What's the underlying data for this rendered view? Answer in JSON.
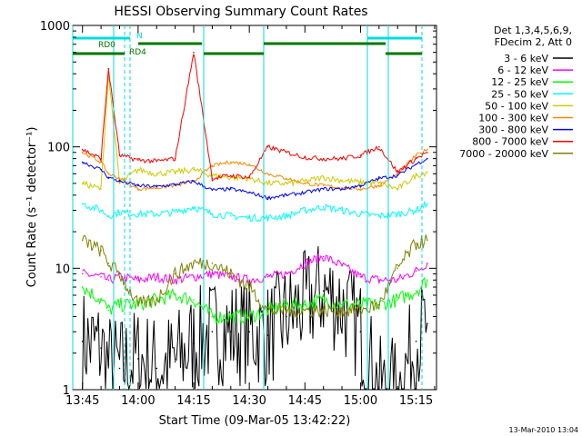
{
  "chart_data": {
    "type": "line",
    "title": "HESSI Observing Summary Count Rates",
    "xlabel": "Start Time (09-Mar-05 13:42:22)",
    "ylabel": "Count Rate (s⁻¹ detector⁻¹)",
    "y_scale": "log",
    "ylim": [
      1,
      1000
    ],
    "xlim": [
      "13:42:22",
      "15:20:30"
    ],
    "x_ticks": [
      "13:45",
      "14:00",
      "14:15",
      "14:30",
      "14:45",
      "15:00",
      "15:15"
    ],
    "y_ticks": [
      "1",
      "10",
      "100",
      "1000"
    ],
    "footer_date": "13-Mar-2010 13:04",
    "legend": {
      "header": [
        "Det 1,3,4,5,6,9,",
        "FDecim 2, Att 0"
      ],
      "placement": "right"
    },
    "flags": [
      {
        "label": "RD0",
        "color": "#007700"
      },
      {
        "label": "RD4",
        "color": "#007700"
      },
      {
        "label": "N",
        "color": "#00dddd"
      }
    ],
    "series": [
      {
        "name": "3 - 6 keV",
        "color": "#000000",
        "x": [
          "13:45",
          "13:50",
          "13:52",
          "13:55",
          "14:00",
          "14:05",
          "14:10",
          "14:15",
          "14:20",
          "14:25",
          "14:30",
          "14:35",
          "14:40",
          "14:45",
          "14:50",
          "14:55",
          "15:00",
          "15:05",
          "15:10",
          "15:15",
          "15:18"
        ],
        "y": [
          2.5,
          2.2,
          1.6,
          1.5,
          1.8,
          1.5,
          1.7,
          2.4,
          3.0,
          3.0,
          3.0,
          2.8,
          4.0,
          5.0,
          6.5,
          5.0,
          3.0,
          1.0,
          1.0,
          2.5,
          3.5
        ]
      },
      {
        "name": "6 - 12 keV",
        "color": "#ff00ff",
        "x": [
          "13:45",
          "13:50",
          "13:52",
          "13:55",
          "14:00",
          "14:05",
          "14:10",
          "14:15",
          "14:20",
          "14:25",
          "14:30",
          "14:35",
          "14:40",
          "14:45",
          "14:50",
          "14:55",
          "15:00",
          "15:05",
          "15:10",
          "15:15",
          "15:18"
        ],
        "y": [
          9.0,
          8.5,
          8.0,
          8.5,
          8.0,
          8.5,
          8.0,
          8.5,
          9.0,
          8.5,
          8.0,
          8.5,
          9.0,
          11.0,
          12.5,
          10.5,
          8.5,
          8.0,
          8.0,
          9.5,
          11.0
        ]
      },
      {
        "name": "12 - 25 keV",
        "color": "#00ff00",
        "x": [
          "13:45",
          "13:50",
          "13:52",
          "13:55",
          "14:00",
          "14:05",
          "14:10",
          "14:15",
          "14:20",
          "14:25",
          "14:30",
          "14:35",
          "14:40",
          "14:45",
          "14:50",
          "14:55",
          "15:00",
          "15:05",
          "15:10",
          "15:15",
          "15:18"
        ],
        "y": [
          7.0,
          5.5,
          4.5,
          5.0,
          5.0,
          5.5,
          6.0,
          5.5,
          4.0,
          4.0,
          4.0,
          4.5,
          5.0,
          5.0,
          5.5,
          5.0,
          5.0,
          5.0,
          5.5,
          6.5,
          8.0
        ]
      },
      {
        "name": "25 - 50 keV",
        "color": "#00ffff",
        "x": [
          "13:45",
          "13:50",
          "13:52",
          "13:55",
          "14:00",
          "14:05",
          "14:10",
          "14:15",
          "14:20",
          "14:25",
          "14:30",
          "14:35",
          "14:40",
          "14:45",
          "14:50",
          "14:55",
          "15:00",
          "15:05",
          "15:10",
          "15:15",
          "15:18"
        ],
        "y": [
          34,
          30,
          27,
          29,
          28,
          28,
          29,
          32,
          28,
          27,
          26,
          26,
          27,
          30,
          32,
          30,
          28,
          27,
          28,
          30,
          34
        ]
      },
      {
        "name": "50 - 100 keV",
        "color": "#cccc00",
        "x": [
          "13:45",
          "13:50",
          "13:52",
          "13:55",
          "14:00",
          "14:05",
          "14:10",
          "14:15",
          "14:20",
          "14:25",
          "14:30",
          "14:35",
          "14:40",
          "14:45",
          "14:50",
          "14:55",
          "15:00",
          "15:05",
          "15:10",
          "15:15",
          "15:18"
        ],
        "y": [
          50,
          45,
          400,
          50,
          65,
          60,
          62,
          65,
          58,
          56,
          55,
          50,
          50,
          52,
          56,
          53,
          51,
          50,
          45,
          58,
          62
        ]
      },
      {
        "name": "100 - 300 keV",
        "color": "#ff8800",
        "x": [
          "13:45",
          "13:50",
          "13:52",
          "13:55",
          "14:00",
          "14:05",
          "14:10",
          "14:15",
          "14:20",
          "14:25",
          "14:30",
          "14:35",
          "14:40",
          "14:45",
          "14:50",
          "14:55",
          "15:00",
          "15:05",
          "15:10",
          "15:15",
          "15:18"
        ],
        "y": [
          90,
          75,
          60,
          55,
          45,
          46,
          48,
          52,
          70,
          75,
          72,
          60,
          55,
          50,
          48,
          46,
          45,
          48,
          60,
          85,
          95
        ]
      },
      {
        "name": "300 - 800 keV",
        "color": "#0000ff",
        "x": [
          "13:45",
          "13:50",
          "13:52",
          "13:55",
          "14:00",
          "14:05",
          "14:10",
          "14:15",
          "14:20",
          "14:25",
          "14:30",
          "14:35",
          "14:40",
          "14:45",
          "14:50",
          "14:55",
          "15:00",
          "15:05",
          "15:10",
          "15:15",
          "15:18"
        ],
        "y": [
          75,
          65,
          56,
          52,
          48,
          47,
          49,
          52,
          44,
          45,
          42,
          38,
          40,
          42,
          45,
          45,
          48,
          55,
          58,
          72,
          80
        ]
      },
      {
        "name": "800 - 7000 keV",
        "color": "#ff0000",
        "x": [
          "13:45",
          "13:50",
          "13:52",
          "13:55",
          "14:00",
          "14:05",
          "14:10",
          "14:15",
          "14:20",
          "14:25",
          "14:30",
          "14:35",
          "14:40",
          "14:45",
          "14:50",
          "14:55",
          "15:00",
          "15:05",
          "15:10",
          "15:15",
          "15:18"
        ],
        "y": [
          95,
          80,
          440,
          85,
          78,
          76,
          80,
          600,
          55,
          58,
          56,
          100,
          90,
          82,
          80,
          80,
          85,
          100,
          62,
          80,
          90
        ]
      },
      {
        "name": "7000 - 20000 keV",
        "color": "#808000",
        "x": [
          "13:45",
          "13:50",
          "13:52",
          "13:55",
          "14:00",
          "14:05",
          "14:10",
          "14:15",
          "14:20",
          "14:25",
          "14:30",
          "14:35",
          "14:40",
          "14:45",
          "14:50",
          "14:55",
          "15:00",
          "15:05",
          "15:10",
          "15:15",
          "15:18"
        ],
        "y": [
          17,
          14,
          11,
          9,
          5.0,
          5.5,
          9.0,
          11,
          11,
          9.0,
          7.0,
          4.5,
          4.5,
          4.5,
          4.5,
          4.5,
          4.5,
          5.0,
          10,
          16,
          17
        ]
      }
    ]
  }
}
